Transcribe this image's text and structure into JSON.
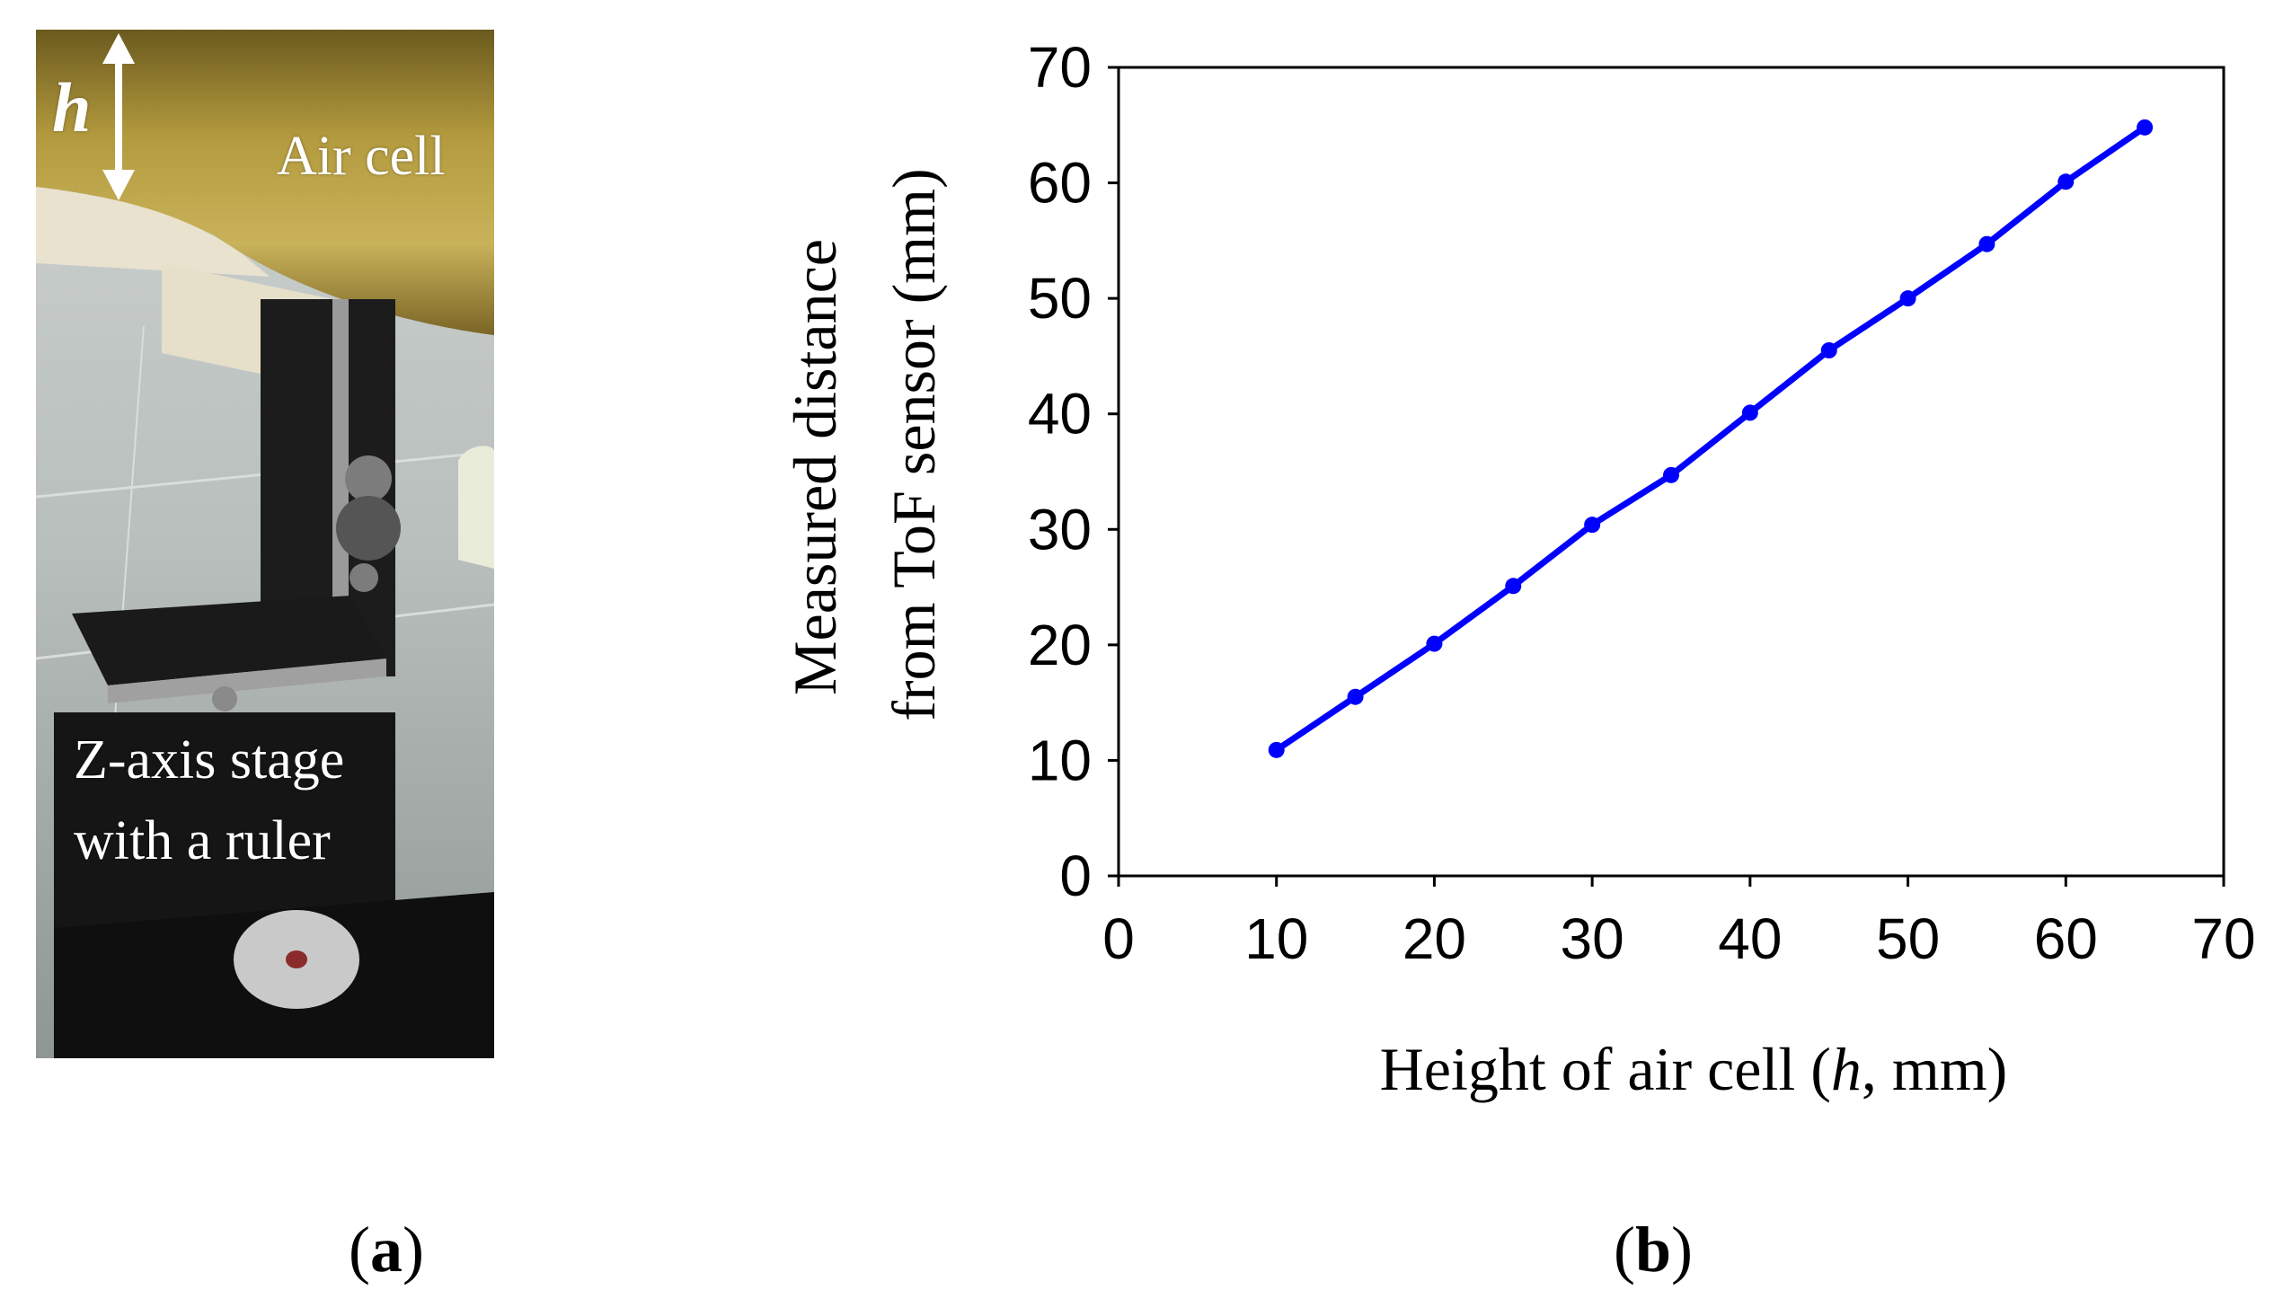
{
  "panel_a": {
    "caption": "(a)",
    "caption_letter": "a",
    "labels": {
      "h": "h",
      "air_cell": "Air cell",
      "stage_line1": "Z-axis stage",
      "stage_line2": "with a ruler"
    }
  },
  "panel_b": {
    "caption": "(b)",
    "caption_letter": "b"
  },
  "chart_data": {
    "type": "line",
    "title": "",
    "xlabel": "Height of air cell (h, mm)",
    "xlabel_parts": [
      "Height of air cell (",
      "h",
      ", mm)"
    ],
    "ylabel_line1": "Measured distance",
    "ylabel_line2": "from ToF sensor (mm)",
    "xlim": [
      0,
      70
    ],
    "ylim": [
      0,
      70
    ],
    "xticks": [
      0,
      10,
      20,
      30,
      40,
      50,
      60,
      70
    ],
    "yticks": [
      0,
      10,
      20,
      30,
      40,
      50,
      60,
      70
    ],
    "grid": false,
    "legend": "none",
    "series": [
      {
        "name": "Measured distance",
        "color": "#0000ff",
        "x": [
          10,
          15,
          20,
          25,
          30,
          35,
          40,
          45,
          50,
          55,
          60,
          65
        ],
        "y": [
          10.9,
          15.5,
          20.1,
          25.1,
          30.4,
          34.7,
          40.1,
          45.5,
          50.0,
          54.7,
          60.1,
          64.8
        ]
      }
    ]
  }
}
